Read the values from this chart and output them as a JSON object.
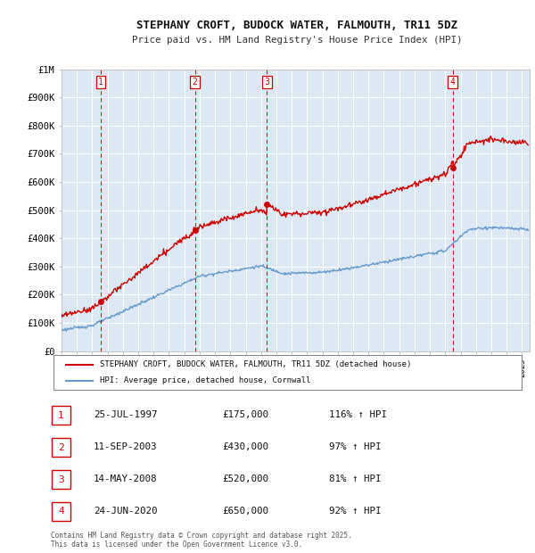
{
  "title": "STEPHANY CROFT, BUDOCK WATER, FALMOUTH, TR11 5DZ",
  "subtitle": "Price paid vs. HM Land Registry's House Price Index (HPI)",
  "ylim": [
    0,
    1000000
  ],
  "yticks": [
    0,
    100000,
    200000,
    300000,
    400000,
    500000,
    600000,
    700000,
    800000,
    900000,
    1000000
  ],
  "ytick_labels": [
    "£0",
    "£100K",
    "£200K",
    "£300K",
    "£400K",
    "£500K",
    "£600K",
    "£700K",
    "£800K",
    "£900K",
    "£1M"
  ],
  "xlim_start": 1995.0,
  "xlim_end": 2025.5,
  "xticks": [
    1995,
    1996,
    1997,
    1998,
    1999,
    2000,
    2001,
    2002,
    2003,
    2004,
    2005,
    2006,
    2007,
    2008,
    2009,
    2010,
    2011,
    2012,
    2013,
    2014,
    2015,
    2016,
    2017,
    2018,
    2019,
    2020,
    2021,
    2022,
    2023,
    2024,
    2025
  ],
  "transaction_color": "#cc0000",
  "hpi_color": "#6699cc",
  "chart_bg": "#dce9f5",
  "legend_label_red": "STEPHANY CROFT, BUDOCK WATER, FALMOUTH, TR11 5DZ (detached house)",
  "legend_label_blue": "HPI: Average price, detached house, Cornwall",
  "footnote": "Contains HM Land Registry data © Crown copyright and database right 2025.\nThis data is licensed under the Open Government Licence v3.0.",
  "sales": [
    {
      "num": 1,
      "date_x": 1997.56,
      "price": 175000
    },
    {
      "num": 2,
      "date_x": 2003.69,
      "price": 430000
    },
    {
      "num": 3,
      "date_x": 2008.37,
      "price": 520000
    },
    {
      "num": 4,
      "date_x": 2020.48,
      "price": 650000
    }
  ],
  "background_color": "#ffffff",
  "grid_color": "#ffffff",
  "table_rows": [
    {
      "num": 1,
      "date": "25-JUL-1997",
      "price": "£175,000",
      "hpi": "116% ↑ HPI"
    },
    {
      "num": 2,
      "date": "11-SEP-2003",
      "price": "£430,000",
      "hpi": "97% ↑ HPI"
    },
    {
      "num": 3,
      "date": "14-MAY-2008",
      "price": "£520,000",
      "hpi": "81% ↑ HPI"
    },
    {
      "num": 4,
      "date": "24-JUN-2020",
      "price": "£650,000",
      "hpi": "92% ↑ HPI"
    }
  ]
}
